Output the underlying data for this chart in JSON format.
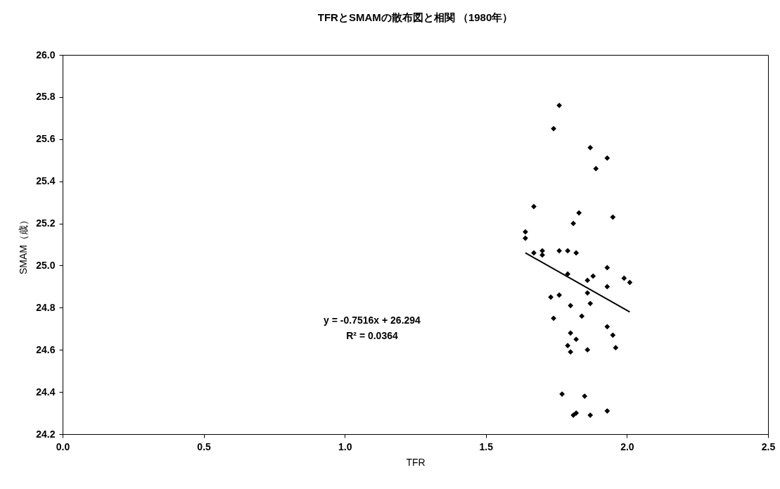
{
  "chart_data": {
    "type": "scatter",
    "title": "TFRとSMAMの散布図と相関 （1980年）",
    "xlabel": "TFR",
    "ylabel": "SMAM（歳）",
    "xlim": [
      0,
      2.5
    ],
    "xticks": [
      {
        "value": 0,
        "label": "0.0"
      },
      0.5,
      {
        "value": 1,
        "label": "1.0"
      },
      1.5,
      {
        "value": 2,
        "label": "2.0"
      },
      2.5
    ],
    "ylim": [
      24.2,
      26
    ],
    "yticks": [
      24.2,
      24.4,
      24.6,
      24.8,
      {
        "value": 25,
        "label": "25.0"
      },
      25.2,
      25.4,
      25.6,
      25.8,
      {
        "value": 26,
        "label": "26.0"
      }
    ],
    "annotations": [
      "y = -0.7516x + 26.294",
      "R² = 0.0364"
    ],
    "series": [
      {
        "marker": "diamond",
        "color": "#000000",
        "x": [
          1.76,
          1.74,
          1.93,
          1.87,
          1.89,
          1.67,
          1.83,
          1.95,
          1.81,
          1.64,
          1.64,
          1.67,
          1.7,
          1.7,
          1.76,
          1.79,
          1.82,
          1.93,
          1.79,
          1.88,
          1.86,
          1.99,
          2.01,
          1.93,
          1.86,
          1.73,
          1.76,
          1.8,
          1.87,
          1.74,
          1.84,
          1.93,
          1.95,
          1.8,
          1.82,
          1.79,
          1.8,
          1.86,
          1.96,
          1.77,
          1.85,
          1.81,
          1.82,
          1.87,
          1.93
        ],
        "values": [
          25.76,
          25.65,
          25.51,
          25.56,
          25.46,
          25.28,
          25.25,
          25.23,
          25.2,
          25.16,
          25.13,
          25.06,
          25.07,
          25.05,
          25.07,
          25.07,
          25.06,
          24.99,
          24.96,
          24.95,
          24.93,
          24.94,
          24.92,
          24.9,
          24.87,
          24.85,
          24.86,
          24.81,
          24.82,
          24.75,
          24.76,
          24.71,
          24.67,
          24.68,
          24.65,
          24.62,
          24.59,
          24.6,
          24.61,
          24.39,
          24.38,
          24.29,
          24.3,
          24.29,
          24.31
        ]
      },
      {
        "type": "line",
        "marker": "none",
        "color": "#000000",
        "x": [
          1.64,
          2.01
        ],
        "values": [
          25.06,
          24.78
        ]
      }
    ]
  }
}
